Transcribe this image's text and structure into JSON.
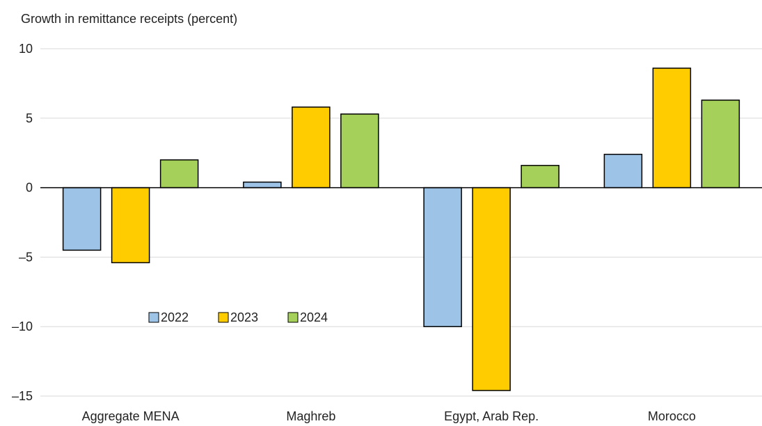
{
  "chart_data": {
    "type": "bar",
    "title": "Growth in remittance receipts (percent)",
    "xlabel": "",
    "ylabel": "",
    "categories": [
      "Aggregate MENA",
      "Maghreb",
      "Egypt, Arab Rep.",
      "Morocco"
    ],
    "series": [
      {
        "name": "2022",
        "color": "#9dc3e6",
        "values": [
          -4.5,
          0.4,
          -10.0,
          2.4
        ]
      },
      {
        "name": "2023",
        "color": "#ffcc00",
        "values": [
          -5.4,
          5.8,
          -14.6,
          8.6
        ]
      },
      {
        "name": "2024",
        "color": "#a5d05a",
        "values": [
          2.0,
          5.3,
          1.6,
          6.3
        ]
      }
    ],
    "ylim": [
      -15,
      10
    ],
    "yticks": [
      10,
      5,
      0,
      -5,
      -10,
      -15
    ],
    "ytick_labels": [
      "10",
      "5",
      "0",
      "–5",
      "–10",
      "–15"
    ],
    "grid": true,
    "legend": "inside-lower-left"
  }
}
